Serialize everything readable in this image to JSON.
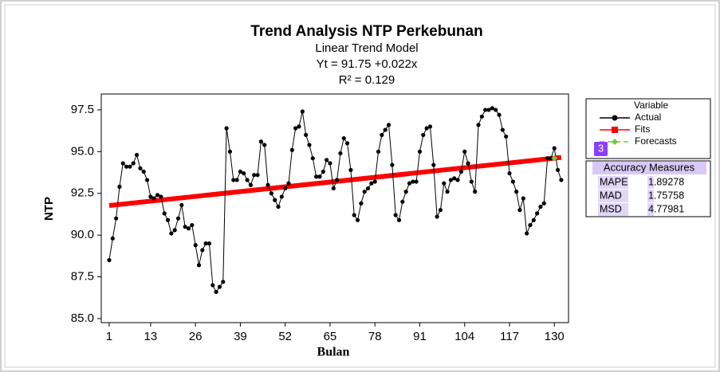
{
  "chart_data": {
    "type": "line",
    "title": "Trend Analysis NTP Perkebunan",
    "annotations": [
      "Linear Trend Model",
      "Yt = 91.75 +0.022x",
      "R² = 0.129"
    ],
    "x_label": "Bulan",
    "y_label": "NTP",
    "xlim": [
      -1.3,
      134.1
    ],
    "ylim": [
      84.76,
      98.45
    ],
    "xticks": [
      1,
      13,
      26,
      39,
      52,
      65,
      78,
      91,
      104,
      117,
      130
    ],
    "yticks": [
      {
        "value": 85,
        "label": "85.0"
      },
      87.5,
      {
        "value": 90,
        "label": "90.0"
      },
      92.5,
      {
        "value": 95,
        "label": "95.0"
      },
      97.5
    ],
    "legend_title": "Variable",
    "x": [
      1,
      2,
      3,
      4,
      5,
      6,
      7,
      8,
      9,
      10,
      11,
      12,
      13,
      14,
      15,
      16,
      17,
      18,
      19,
      20,
      21,
      22,
      23,
      24,
      25,
      26,
      27,
      28,
      29,
      30,
      31,
      32,
      33,
      34,
      35,
      36,
      37,
      38,
      39,
      40,
      41,
      42,
      43,
      44,
      45,
      46,
      47,
      48,
      49,
      50,
      51,
      52,
      53,
      54,
      55,
      56,
      57,
      58,
      59,
      60,
      61,
      62,
      63,
      64,
      65,
      66,
      67,
      68,
      69,
      70,
      71,
      72,
      73,
      74,
      75,
      76,
      77,
      78,
      79,
      80,
      81,
      82,
      83,
      84,
      85,
      86,
      87,
      88,
      89,
      90,
      91,
      92,
      93,
      94,
      95,
      96,
      97,
      98,
      99,
      100,
      101,
      102,
      103,
      104,
      105,
      106,
      107,
      108,
      109,
      110,
      111,
      112,
      113,
      114,
      115,
      116,
      117,
      118,
      119,
      120,
      121,
      122,
      123,
      124,
      125,
      126,
      127,
      128,
      129,
      130,
      131,
      132
    ],
    "series": [
      {
        "name": "Actual",
        "color": "#000000",
        "values": [
          88.5,
          89.8,
          91.0,
          92.9,
          94.3,
          94.1,
          94.1,
          94.3,
          94.8,
          94.0,
          93.8,
          93.3,
          92.3,
          92.2,
          92.4,
          92.3,
          91.3,
          90.9,
          90.1,
          90.3,
          91.0,
          91.8,
          90.5,
          90.4,
          90.6,
          89.4,
          88.2,
          89.1,
          89.5,
          89.5,
          87.0,
          86.6,
          86.9,
          87.2,
          96.4,
          95.0,
          93.3,
          93.3,
          93.8,
          93.7,
          93.3,
          93.0,
          93.6,
          93.6,
          95.6,
          95.4,
          93.0,
          92.5,
          92.1,
          91.7,
          92.3,
          92.8,
          93.1,
          95.1,
          96.4,
          96.5,
          97.4,
          96.0,
          95.4,
          94.6,
          93.5,
          93.5,
          93.8,
          94.5,
          94.3,
          92.8,
          93.3,
          94.9,
          95.8,
          95.5,
          93.9,
          91.2,
          90.9,
          91.9,
          92.6,
          92.8,
          93.1,
          93.2,
          95.0,
          96.0,
          96.3,
          96.6,
          94.2,
          91.2,
          90.9,
          92.0,
          92.6,
          93.1,
          93.2,
          93.2,
          95.0,
          96.0,
          96.4,
          96.5,
          94.2,
          91.1,
          91.5,
          93.1,
          92.6,
          93.3,
          93.4,
          93.3,
          93.8,
          95.0,
          94.3,
          93.2,
          92.6,
          96.6,
          97.1,
          97.5,
          97.5,
          97.6,
          97.5,
          97.2,
          96.3,
          95.9,
          93.7,
          93.2,
          92.6,
          91.5,
          92.2,
          90.1,
          90.6,
          90.9,
          91.3,
          91.7,
          91.9,
          94.6,
          94.6,
          95.2,
          93.9,
          93.3
        ]
      },
      {
        "name": "Fits",
        "color": "#ff0000",
        "x": [
          1,
          132
        ],
        "values": [
          91.77,
          94.65
        ]
      },
      {
        "name": "Forecasts",
        "color": "#7dc242",
        "x": [
          130
        ],
        "values": [
          94.6
        ]
      }
    ],
    "badge": "3",
    "accuracy": {
      "title": "Accuracy Measures",
      "rows": [
        [
          "MAPE",
          1.89278
        ],
        [
          "MAD",
          1.75758
        ],
        [
          "MSD",
          4.77981
        ]
      ]
    }
  }
}
